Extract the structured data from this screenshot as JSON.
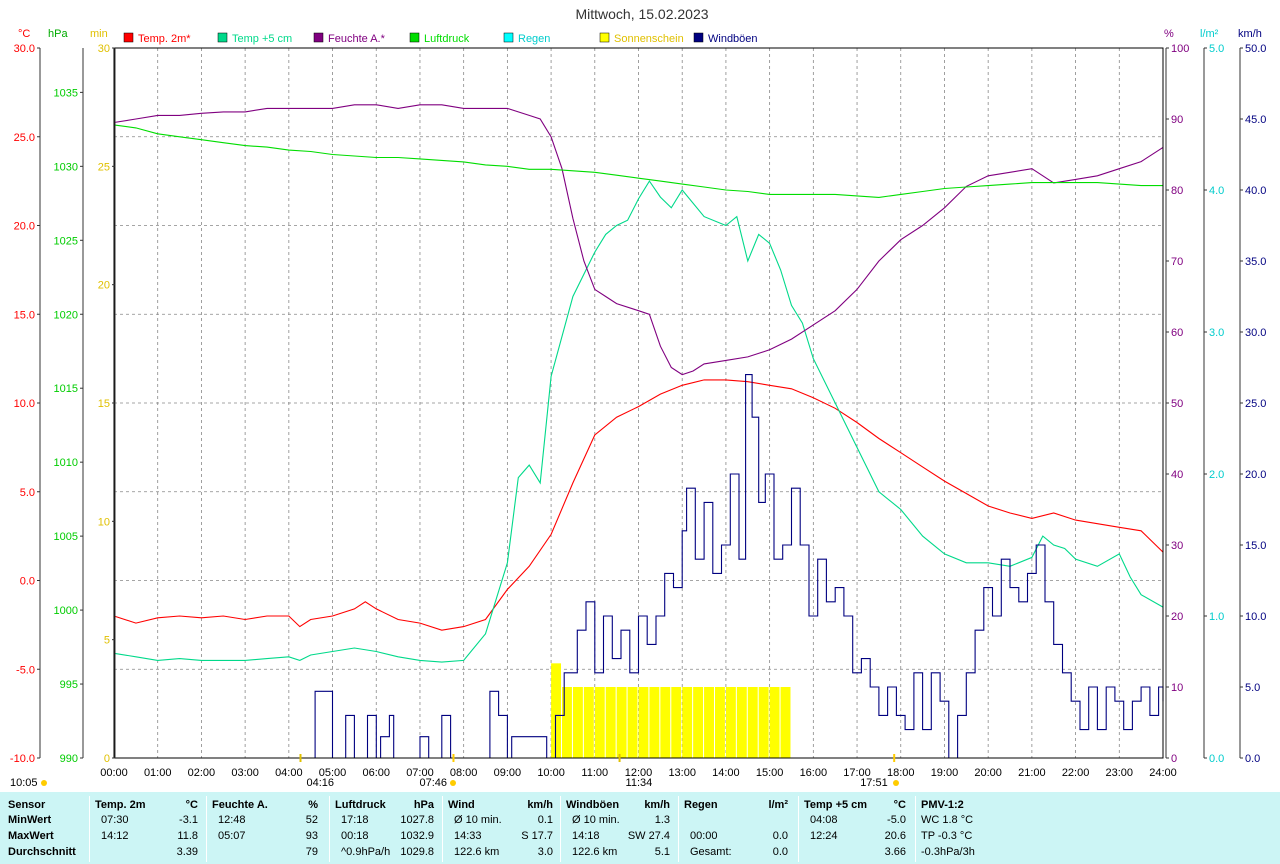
{
  "title": "Mittwoch, 15.02.2023",
  "axis_units": {
    "temp": "°C",
    "pressure": "hPa",
    "sunshine": "min",
    "humidity": "%",
    "rain": "l/m²",
    "wind": "km/h"
  },
  "legend": [
    {
      "label": "Temp. 2m*",
      "color": "#ff0000"
    },
    {
      "label": "Temp +5 cm",
      "color": "#00d98a"
    },
    {
      "label": "Feuchte A.*",
      "color": "#800080"
    },
    {
      "label": "Luftdruck",
      "color": "#00dd00"
    },
    {
      "label": "Regen",
      "color": "#00ffff"
    },
    {
      "label": "Sonnenschein",
      "color": "#ffff00"
    },
    {
      "label": "Windböen",
      "color": "#000080"
    }
  ],
  "sun_events": {
    "sunrise": "07:46",
    "sunset": "17:51",
    "moonset": "10:05",
    "moonrise": "04:16",
    "noon": "11:34"
  },
  "chart_data": {
    "type": "line",
    "title": "Mittwoch, 15.02.2023",
    "x_ticks": [
      "00:00",
      "01:00",
      "02:00",
      "03:00",
      "04:00",
      "05:00",
      "06:00",
      "07:00",
      "08:00",
      "09:00",
      "10:00",
      "11:00",
      "12:00",
      "13:00",
      "14:00",
      "15:00",
      "16:00",
      "17:00",
      "18:00",
      "19:00",
      "20:00",
      "21:00",
      "22:00",
      "23:00",
      "24:00"
    ],
    "xlim": [
      0,
      24
    ],
    "axes": {
      "temp": {
        "ylim": [
          -10,
          30
        ],
        "ticks": [
          "-10.0",
          "-5.0",
          "0.0",
          "5.0",
          "10.0",
          "15.0",
          "20.0",
          "25.0",
          "30.0"
        ]
      },
      "pressure": {
        "ylim": [
          990,
          1038
        ],
        "ticks": [
          "990",
          "995",
          "1000",
          "1005",
          "1010",
          "1015",
          "1020",
          "1025",
          "1030",
          "1035"
        ]
      },
      "sunshine": {
        "ylim": [
          0,
          30
        ],
        "ticks": [
          "0",
          "5",
          "10",
          "15",
          "20",
          "25",
          "30"
        ]
      },
      "humidity": {
        "ylim": [
          0,
          100
        ],
        "ticks": [
          "0",
          "10",
          "20",
          "30",
          "40",
          "50",
          "60",
          "70",
          "80",
          "90",
          "100"
        ]
      },
      "rain": {
        "ylim": [
          0,
          5
        ],
        "ticks": [
          "0.0",
          "1.0",
          "2.0",
          "3.0",
          "4.0",
          "5.0"
        ]
      },
      "wind": {
        "ylim": [
          0,
          50
        ],
        "ticks": [
          "0.0",
          "5.0",
          "10.0",
          "15.0",
          "20.0",
          "25.0",
          "30.0",
          "35.0",
          "40.0",
          "45.0",
          "50.0"
        ]
      }
    },
    "series": [
      {
        "name": "Temp. 2m*",
        "axis": "temp",
        "color": "#ff0000",
        "x": [
          0,
          0.5,
          1,
          1.5,
          2,
          2.5,
          3,
          3.5,
          4,
          4.25,
          4.5,
          5,
          5.5,
          5.75,
          6,
          6.5,
          7,
          7.5,
          8,
          8.5,
          9,
          9.5,
          10,
          10.5,
          11,
          11.5,
          12,
          12.5,
          13,
          13.5,
          14,
          14.5,
          15,
          15.5,
          16,
          16.5,
          17,
          17.5,
          18,
          18.5,
          19,
          19.5,
          20,
          20.5,
          21,
          21.5,
          22,
          22.5,
          23,
          23.5,
          24
        ],
        "y": [
          -2.0,
          -2.4,
          -2.1,
          -2.0,
          -2.1,
          -2.0,
          -2.2,
          -2.0,
          -2.0,
          -2.6,
          -2.2,
          -2.0,
          -1.6,
          -1.2,
          -1.6,
          -2.2,
          -2.4,
          -2.8,
          -2.6,
          -2.2,
          -0.5,
          0.8,
          2.6,
          5.5,
          8.2,
          9.2,
          9.8,
          10.5,
          11.0,
          11.3,
          11.3,
          11.2,
          11.0,
          10.8,
          10.3,
          9.7,
          8.9,
          8.0,
          7.2,
          6.4,
          5.6,
          4.9,
          4.2,
          3.8,
          3.5,
          3.8,
          3.4,
          3.2,
          3.0,
          2.8,
          1.6
        ]
      },
      {
        "name": "Temp +5 cm",
        "axis": "temp",
        "color": "#00d98a",
        "x": [
          0,
          0.5,
          1,
          1.5,
          2,
          2.5,
          3,
          3.5,
          4,
          4.25,
          4.5,
          5,
          5.5,
          6,
          6.5,
          7,
          7.5,
          8,
          8.5,
          9,
          9.25,
          9.5,
          9.75,
          10,
          10.5,
          11,
          11.25,
          11.5,
          11.75,
          12,
          12.25,
          12.5,
          12.75,
          13,
          13.5,
          14,
          14.25,
          14.5,
          14.75,
          15,
          15.25,
          15.5,
          15.75,
          16,
          16.5,
          17,
          17.5,
          18,
          18.5,
          19,
          19.5,
          20,
          20.5,
          21,
          21.25,
          21.5,
          21.75,
          22,
          22.5,
          23,
          23.25,
          23.5,
          24
        ],
        "y": [
          -4.1,
          -4.3,
          -4.5,
          -4.4,
          -4.5,
          -4.5,
          -4.5,
          -4.4,
          -4.3,
          -4.5,
          -4.2,
          -4.0,
          -3.8,
          -4.0,
          -4.3,
          -4.5,
          -4.6,
          -4.5,
          -3.0,
          1.0,
          5.8,
          6.5,
          5.5,
          11.5,
          16.0,
          18.5,
          19.5,
          20.0,
          20.3,
          21.5,
          22.5,
          21.6,
          21.0,
          22.0,
          20.5,
          20.0,
          20.5,
          18.0,
          19.5,
          19.0,
          17.5,
          15.5,
          14.5,
          12.5,
          10.0,
          7.5,
          5.0,
          4.0,
          2.5,
          1.5,
          1.0,
          1.0,
          0.8,
          1.3,
          2.5,
          2.0,
          1.8,
          1.2,
          0.8,
          1.5,
          0.2,
          -0.8,
          -1.5
        ]
      },
      {
        "name": "Feuchte A.*",
        "axis": "humidity",
        "color": "#800080",
        "x": [
          0,
          0.5,
          1,
          1.5,
          2,
          2.5,
          3,
          3.5,
          4,
          4.5,
          5,
          5.5,
          6,
          6.5,
          7,
          7.5,
          8,
          8.5,
          9,
          9.5,
          9.75,
          10,
          10.25,
          10.5,
          10.75,
          11,
          11.25,
          11.5,
          12,
          12.25,
          12.5,
          12.75,
          13,
          13.25,
          13.5,
          14,
          14.5,
          15,
          15.5,
          16,
          16.5,
          17,
          17.5,
          18,
          18.5,
          19,
          19.5,
          20,
          20.5,
          21,
          21.25,
          21.5,
          22,
          22.5,
          23,
          23.5,
          24
        ],
        "y": [
          89.5,
          90,
          90.5,
          90.5,
          90.8,
          91,
          91,
          91.5,
          91.5,
          91.5,
          91.5,
          92,
          92,
          91.5,
          92,
          92,
          91.5,
          91.5,
          91.5,
          90.5,
          90,
          87.5,
          83,
          76,
          70,
          66,
          65,
          64,
          63,
          62.5,
          58,
          55,
          54,
          54.5,
          55.5,
          56,
          56.5,
          57.5,
          59,
          61,
          63,
          66,
          70,
          73,
          75,
          77.5,
          80.5,
          82,
          82.5,
          83,
          82,
          81,
          81.5,
          82,
          83,
          84,
          86
        ]
      },
      {
        "name": "Luftdruck",
        "axis": "pressure",
        "color": "#00dd00",
        "x": [
          0,
          0.5,
          1,
          1.5,
          2,
          2.5,
          3,
          3.5,
          4,
          4.5,
          5,
          5.5,
          6,
          6.5,
          7,
          7.5,
          8,
          8.5,
          9,
          9.5,
          10,
          10.5,
          11,
          11.5,
          12,
          12.5,
          13,
          13.5,
          14,
          14.5,
          15,
          15.5,
          16,
          16.5,
          17,
          17.5,
          18,
          18.5,
          19,
          19.5,
          20,
          20.5,
          21,
          21.5,
          22,
          22.5,
          23,
          23.5,
          24
        ],
        "y": [
          1032.8,
          1032.6,
          1032.2,
          1032.0,
          1031.8,
          1031.6,
          1031.4,
          1031.3,
          1031.1,
          1031.0,
          1030.8,
          1030.7,
          1030.6,
          1030.6,
          1030.5,
          1030.4,
          1030.3,
          1030.1,
          1030.0,
          1029.8,
          1029.8,
          1029.7,
          1029.6,
          1029.4,
          1029.2,
          1029.0,
          1028.8,
          1028.6,
          1028.4,
          1028.3,
          1028.1,
          1028.1,
          1028.1,
          1028.1,
          1028.0,
          1027.9,
          1028.1,
          1028.3,
          1028.5,
          1028.6,
          1028.7,
          1028.8,
          1028.9,
          1028.9,
          1028.9,
          1028.9,
          1028.8,
          1028.7,
          1028.7
        ]
      },
      {
        "name": "Windböen",
        "axis": "wind",
        "color": "#000080",
        "x": [
          0,
          4.5,
          4.6,
          4.9,
          5.0,
          5.3,
          5.5,
          5.8,
          6.0,
          6.1,
          6.3,
          6.4,
          7.0,
          7.2,
          7.5,
          7.7,
          8.5,
          8.6,
          8.8,
          9.0,
          9.1,
          9.9,
          10.1,
          10.3,
          10.6,
          10.8,
          11.0,
          11.2,
          11.4,
          11.6,
          11.8,
          12.0,
          12.2,
          12.4,
          12.6,
          12.8,
          13.0,
          13.1,
          13.3,
          13.5,
          13.7,
          13.9,
          14.1,
          14.3,
          14.45,
          14.6,
          14.75,
          14.9,
          15.1,
          15.3,
          15.5,
          15.7,
          15.9,
          16.1,
          16.3,
          16.5,
          16.7,
          16.9,
          17.1,
          17.3,
          17.5,
          17.7,
          17.9,
          18.1,
          18.3,
          18.5,
          18.7,
          18.9,
          19.1,
          19.3,
          19.5,
          19.7,
          19.9,
          20.1,
          20.3,
          20.5,
          20.7,
          20.9,
          21.1,
          21.3,
          21.5,
          21.7,
          21.9,
          22.1,
          22.3,
          22.5,
          22.7,
          22.9,
          23.1,
          23.3,
          23.5,
          23.7,
          23.9,
          24
        ],
        "y": [
          0,
          0,
          4.7,
          4.7,
          0,
          3,
          0,
          3,
          0,
          1.5,
          3,
          0,
          1.5,
          0,
          3,
          0,
          0,
          4.7,
          3,
          0,
          1.5,
          0,
          3,
          6,
          9,
          11,
          6,
          10,
          7,
          9,
          6,
          10,
          8,
          10,
          13,
          12,
          16,
          19,
          14,
          18,
          13,
          15,
          20,
          14,
          27,
          24,
          18,
          20,
          14,
          15,
          19,
          15,
          10,
          14,
          11,
          12,
          10,
          6,
          7,
          5,
          3,
          5,
          3,
          2,
          6,
          2,
          6,
          4,
          0,
          3,
          6,
          9,
          12,
          10,
          14,
          12,
          11,
          13,
          15,
          11,
          8,
          6,
          4,
          2,
          5,
          2,
          5,
          4,
          2,
          4,
          5,
          3,
          5,
          4
        ]
      }
    ],
    "bars": {
      "name": "Sonnenschein",
      "axis": "sunshine",
      "color": "#ffff00",
      "x": [
        10.0,
        10.25,
        10.5,
        10.75,
        11.0,
        11.25,
        11.5,
        11.75,
        12.0,
        12.25,
        12.5,
        12.75,
        13.0,
        13.25,
        13.5,
        13.75,
        14.0,
        14.25,
        14.5,
        14.75,
        15.0,
        15.25
      ],
      "values": [
        4,
        3,
        3,
        3,
        3,
        3,
        3,
        3,
        3,
        3,
        3,
        3,
        3,
        3,
        3,
        3,
        3,
        3,
        3,
        3,
        3,
        3
      ]
    },
    "rain": {
      "name": "Regen",
      "axis": "rain",
      "color": "#00ffff",
      "total": 0.0
    }
  },
  "table": {
    "columns": [
      {
        "header": "Sensor",
        "unit": "",
        "rows": [
          "MinWert",
          "MaxWert",
          "Durchschnitt"
        ]
      },
      {
        "header": "Temp. 2m",
        "unit": "°C",
        "rows": [
          [
            "07:30",
            "-3.1"
          ],
          [
            "14:12",
            "11.8"
          ],
          [
            "",
            "3.39"
          ]
        ]
      },
      {
        "header": "Feuchte A.",
        "unit": "%",
        "rows": [
          [
            "12:48",
            "52"
          ],
          [
            "05:07",
            "93"
          ],
          [
            "",
            "79"
          ]
        ]
      },
      {
        "header": "Luftdruck",
        "unit": "hPa",
        "rows": [
          [
            "17:18",
            "1027.8"
          ],
          [
            "00:18",
            "1032.9"
          ],
          [
            "^0.9hPa/h",
            "1029.8"
          ]
        ]
      },
      {
        "header": "Wind",
        "unit": "km/h",
        "rows": [
          [
            "Ø 10 min.",
            "0.1"
          ],
          [
            "14:33",
            "S 17.7"
          ],
          [
            "122.6 km",
            "3.0"
          ]
        ]
      },
      {
        "header": "Windböen",
        "unit": "km/h",
        "rows": [
          [
            "Ø 10 min.",
            "1.3"
          ],
          [
            "14:18",
            "SW 27.4"
          ],
          [
            "122.6 km",
            "5.1"
          ]
        ]
      },
      {
        "header": "Regen",
        "unit": "l/m²",
        "rows": [
          [
            "",
            ""
          ],
          [
            "00:00",
            "0.0"
          ],
          [
            "Gesamt:",
            "0.0"
          ]
        ]
      },
      {
        "header": "Temp +5 cm",
        "unit": "°C",
        "rows": [
          [
            "04:08",
            "-5.0"
          ],
          [
            "12:24",
            "20.6"
          ],
          [
            "",
            "3.66"
          ]
        ]
      },
      {
        "header": "PMV-1:2",
        "unit": "",
        "rows": [
          "WC 1.8 °C",
          "TP -0.3 °C",
          "-0.3hPa/3h"
        ]
      }
    ]
  }
}
